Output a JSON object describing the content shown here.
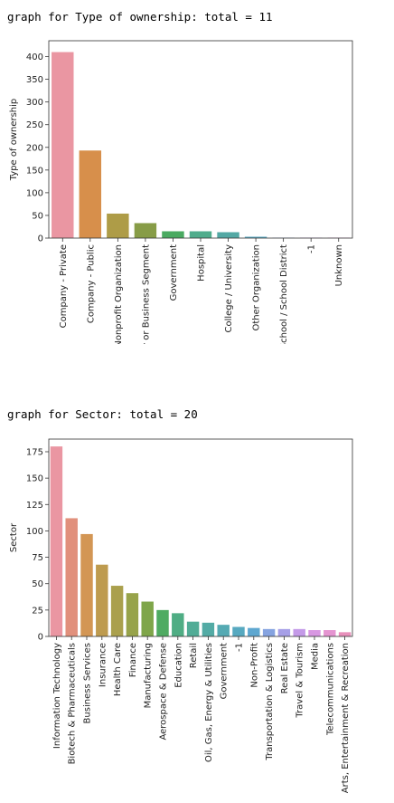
{
  "outputs": [
    {
      "heading": "graph for Type of ownership: total = 11"
    },
    {
      "heading": "graph for Sector: total = 20"
    }
  ],
  "chart_data": [
    {
      "type": "bar",
      "title": "",
      "xlabel": "",
      "ylabel": "Type of ownership",
      "ylim": [
        0,
        435
      ],
      "yticks": [
        0,
        50,
        100,
        150,
        200,
        250,
        300,
        350,
        400
      ],
      "grid": false,
      "categories": [
        "Company - Private",
        "Company - Public",
        "Nonprofit Organization",
        "Subsidiary or Business Segment",
        "Government",
        "Hospital",
        "College / University",
        "Other Organization",
        "School / School District",
        "-1",
        "Unknown"
      ],
      "values": [
        410,
        193,
        54,
        33,
        15,
        15,
        13,
        3,
        1,
        1,
        1
      ],
      "colors": [
        "#ea96a2",
        "#d78f4b",
        "#ae9c47",
        "#879c47",
        "#4aaa61",
        "#50ac8c",
        "#53a8a4",
        "#58a8c2",
        "#8ba4df",
        "#c39ae8",
        "#e38fd2"
      ]
    },
    {
      "type": "bar",
      "title": "",
      "xlabel": "",
      "ylabel": "Sector",
      "ylim": [
        0,
        187
      ],
      "yticks": [
        0,
        25,
        50,
        75,
        100,
        125,
        150,
        175
      ],
      "grid": false,
      "categories": [
        "Information Technology",
        "Biotech & Pharmaceuticals",
        "Business Services",
        "Insurance",
        "Health Care",
        "Finance",
        "Manufacturing",
        "Aerospace & Defense",
        "Education",
        "Retail",
        "Oil, Gas, Energy & Utilities",
        "Government",
        "-1",
        "Non-Profit",
        "Transportation & Logistics",
        "Real Estate",
        "Travel & Tourism",
        "Media",
        "Telecommunications",
        "Arts, Entertainment & Recreation"
      ],
      "values": [
        180,
        112,
        97,
        68,
        48,
        41,
        33,
        25,
        22,
        14,
        13,
        11,
        9,
        8,
        7,
        7,
        7,
        6,
        6,
        4
      ],
      "colors": [
        "#ea96a2",
        "#e1907c",
        "#d39654",
        "#be9b4f",
        "#aaa04d",
        "#97a34a",
        "#7fa64a",
        "#4fab62",
        "#4fad84",
        "#51ac96",
        "#53aba5",
        "#55aab3",
        "#57a9c0",
        "#5ea7d0",
        "#85a3e0",
        "#a69fe7",
        "#c49ae8",
        "#d897e2",
        "#e594d1",
        "#e890bb"
      ]
    }
  ]
}
